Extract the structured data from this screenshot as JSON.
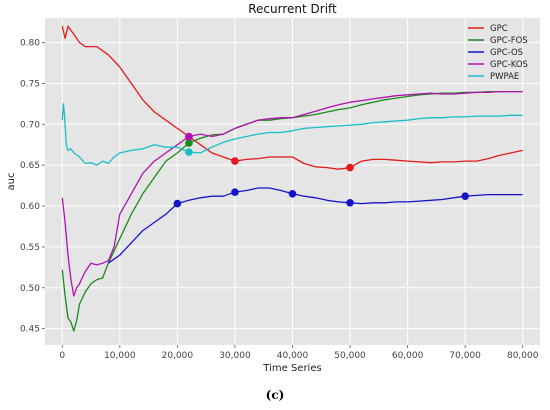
{
  "caption": "(c)",
  "chart_data": {
    "type": "line",
    "title": "Recurrent Drift",
    "xlabel": "Time Series",
    "ylabel": "auc",
    "xlim": [
      -3000,
      83000
    ],
    "ylim": [
      0.43,
      0.83
    ],
    "x_ticks": [
      0,
      10000,
      20000,
      30000,
      40000,
      50000,
      60000,
      70000,
      80000
    ],
    "x_tick_labels": [
      "0",
      "10,000",
      "20,000",
      "30,000",
      "40,000",
      "50,000",
      "60,000",
      "70,000",
      "80,000"
    ],
    "y_ticks": [
      0.45,
      0.5,
      0.55,
      0.6,
      0.65,
      0.7,
      0.75,
      0.8
    ],
    "y_tick_labels": [
      "0.45",
      "0.50",
      "0.55",
      "0.60",
      "0.65",
      "0.70",
      "0.75",
      "0.80"
    ],
    "grid": true,
    "legend": "top-right",
    "series": [
      {
        "name": "GPC",
        "color": "#e41a1c",
        "points": [
          [
            0,
            0.82
          ],
          [
            500,
            0.805
          ],
          [
            1000,
            0.82
          ],
          [
            2000,
            0.81
          ],
          [
            3000,
            0.8
          ],
          [
            4000,
            0.795
          ],
          [
            6000,
            0.795
          ],
          [
            8000,
            0.785
          ],
          [
            10000,
            0.77
          ],
          [
            12000,
            0.75
          ],
          [
            14000,
            0.73
          ],
          [
            16000,
            0.715
          ],
          [
            18000,
            0.705
          ],
          [
            20000,
            0.695
          ],
          [
            22000,
            0.685
          ],
          [
            24000,
            0.675
          ],
          [
            26000,
            0.665
          ],
          [
            28000,
            0.66
          ],
          [
            30000,
            0.655
          ],
          [
            32000,
            0.657
          ],
          [
            34000,
            0.658
          ],
          [
            36000,
            0.66
          ],
          [
            38000,
            0.66
          ],
          [
            40000,
            0.66
          ],
          [
            42000,
            0.652
          ],
          [
            44000,
            0.648
          ],
          [
            46000,
            0.647
          ],
          [
            48000,
            0.645
          ],
          [
            50000,
            0.647
          ],
          [
            52000,
            0.655
          ],
          [
            54000,
            0.657
          ],
          [
            56000,
            0.657
          ],
          [
            58000,
            0.656
          ],
          [
            60000,
            0.655
          ],
          [
            62000,
            0.654
          ],
          [
            64000,
            0.653
          ],
          [
            66000,
            0.654
          ],
          [
            68000,
            0.654
          ],
          [
            70000,
            0.655
          ],
          [
            72000,
            0.655
          ],
          [
            74000,
            0.658
          ],
          [
            76000,
            0.662
          ],
          [
            78000,
            0.665
          ],
          [
            80000,
            0.668
          ]
        ],
        "markers": [
          [
            22000,
            0.684
          ],
          [
            30000,
            0.655
          ],
          [
            50000,
            0.647
          ]
        ]
      },
      {
        "name": "GPC-FOS",
        "color": "#1a8a1a",
        "points": [
          [
            0,
            0.522
          ],
          [
            500,
            0.49
          ],
          [
            1000,
            0.463
          ],
          [
            1500,
            0.458
          ],
          [
            2000,
            0.447
          ],
          [
            2500,
            0.46
          ],
          [
            3000,
            0.48
          ],
          [
            4000,
            0.495
          ],
          [
            5000,
            0.505
          ],
          [
            6000,
            0.51
          ],
          [
            7000,
            0.512
          ],
          [
            8000,
            0.53
          ],
          [
            10000,
            0.56
          ],
          [
            12000,
            0.59
          ],
          [
            14000,
            0.615
          ],
          [
            16000,
            0.635
          ],
          [
            18000,
            0.655
          ],
          [
            20000,
            0.665
          ],
          [
            22000,
            0.677
          ],
          [
            24000,
            0.683
          ],
          [
            26000,
            0.687
          ],
          [
            28000,
            0.688
          ],
          [
            30000,
            0.695
          ],
          [
            32000,
            0.7
          ],
          [
            34000,
            0.705
          ],
          [
            36000,
            0.705
          ],
          [
            38000,
            0.707
          ],
          [
            40000,
            0.708
          ],
          [
            42000,
            0.71
          ],
          [
            44000,
            0.712
          ],
          [
            46000,
            0.715
          ],
          [
            48000,
            0.718
          ],
          [
            50000,
            0.72
          ],
          [
            52000,
            0.724
          ],
          [
            54000,
            0.727
          ],
          [
            56000,
            0.73
          ],
          [
            58000,
            0.732
          ],
          [
            60000,
            0.734
          ],
          [
            62000,
            0.736
          ],
          [
            64000,
            0.737
          ],
          [
            66000,
            0.738
          ],
          [
            68000,
            0.738
          ],
          [
            70000,
            0.739
          ],
          [
            72000,
            0.739
          ],
          [
            74000,
            0.74
          ],
          [
            76000,
            0.74
          ],
          [
            78000,
            0.74
          ],
          [
            80000,
            0.74
          ]
        ],
        "markers": [
          [
            22000,
            0.677
          ]
        ]
      },
      {
        "name": "GPC-OS",
        "color": "#1515c8",
        "points": [
          [
            8000,
            0.53
          ],
          [
            10000,
            0.54
          ],
          [
            12000,
            0.555
          ],
          [
            14000,
            0.57
          ],
          [
            16000,
            0.58
          ],
          [
            18000,
            0.59
          ],
          [
            20000,
            0.603
          ],
          [
            22000,
            0.607
          ],
          [
            24000,
            0.61
          ],
          [
            26000,
            0.612
          ],
          [
            28000,
            0.612
          ],
          [
            30000,
            0.617
          ],
          [
            32000,
            0.619
          ],
          [
            34000,
            0.622
          ],
          [
            36000,
            0.622
          ],
          [
            38000,
            0.619
          ],
          [
            40000,
            0.615
          ],
          [
            42000,
            0.612
          ],
          [
            44000,
            0.61
          ],
          [
            46000,
            0.607
          ],
          [
            48000,
            0.605
          ],
          [
            50000,
            0.604
          ],
          [
            52000,
            0.603
          ],
          [
            54000,
            0.604
          ],
          [
            56000,
            0.604
          ],
          [
            58000,
            0.605
          ],
          [
            60000,
            0.605
          ],
          [
            62000,
            0.606
          ],
          [
            64000,
            0.607
          ],
          [
            66000,
            0.608
          ],
          [
            68000,
            0.61
          ],
          [
            70000,
            0.612
          ],
          [
            72000,
            0.613
          ],
          [
            74000,
            0.614
          ],
          [
            76000,
            0.614
          ],
          [
            78000,
            0.614
          ],
          [
            80000,
            0.614
          ]
        ],
        "markers": [
          [
            20000,
            0.603
          ],
          [
            30000,
            0.617
          ],
          [
            40000,
            0.615
          ],
          [
            50000,
            0.604
          ],
          [
            70000,
            0.612
          ]
        ]
      },
      {
        "name": "GPC-KOS",
        "color": "#b012b0",
        "points": [
          [
            0,
            0.61
          ],
          [
            500,
            0.58
          ],
          [
            1000,
            0.54
          ],
          [
            1500,
            0.51
          ],
          [
            2000,
            0.49
          ],
          [
            2500,
            0.5
          ],
          [
            3000,
            0.505
          ],
          [
            4000,
            0.52
          ],
          [
            5000,
            0.53
          ],
          [
            6000,
            0.528
          ],
          [
            7000,
            0.53
          ],
          [
            8000,
            0.533
          ],
          [
            9000,
            0.55
          ],
          [
            10000,
            0.59
          ],
          [
            12000,
            0.615
          ],
          [
            14000,
            0.64
          ],
          [
            16000,
            0.655
          ],
          [
            18000,
            0.665
          ],
          [
            20000,
            0.675
          ],
          [
            22000,
            0.685
          ],
          [
            24000,
            0.688
          ],
          [
            26000,
            0.685
          ],
          [
            28000,
            0.688
          ],
          [
            30000,
            0.695
          ],
          [
            32000,
            0.7
          ],
          [
            34000,
            0.705
          ],
          [
            36000,
            0.707
          ],
          [
            38000,
            0.708
          ],
          [
            40000,
            0.708
          ],
          [
            42000,
            0.712
          ],
          [
            44000,
            0.716
          ],
          [
            46000,
            0.72
          ],
          [
            48000,
            0.724
          ],
          [
            50000,
            0.727
          ],
          [
            52000,
            0.729
          ],
          [
            54000,
            0.731
          ],
          [
            56000,
            0.733
          ],
          [
            58000,
            0.735
          ],
          [
            60000,
            0.736
          ],
          [
            62000,
            0.737
          ],
          [
            64000,
            0.738
          ],
          [
            66000,
            0.737
          ],
          [
            68000,
            0.737
          ],
          [
            70000,
            0.738
          ],
          [
            72000,
            0.739
          ],
          [
            74000,
            0.739
          ],
          [
            76000,
            0.74
          ],
          [
            78000,
            0.74
          ],
          [
            80000,
            0.74
          ]
        ],
        "markers": [
          [
            22000,
            0.685
          ]
        ]
      },
      {
        "name": "PWPAE",
        "color": "#17bec8",
        "points": [
          [
            0,
            0.705
          ],
          [
            200,
            0.725
          ],
          [
            400,
            0.71
          ],
          [
            700,
            0.675
          ],
          [
            1000,
            0.668
          ],
          [
            1500,
            0.67
          ],
          [
            2000,
            0.665
          ],
          [
            3000,
            0.66
          ],
          [
            4000,
            0.652
          ],
          [
            5000,
            0.653
          ],
          [
            6000,
            0.65
          ],
          [
            7000,
            0.655
          ],
          [
            8000,
            0.652
          ],
          [
            9000,
            0.66
          ],
          [
            10000,
            0.665
          ],
          [
            12000,
            0.668
          ],
          [
            14000,
            0.67
          ],
          [
            16000,
            0.675
          ],
          [
            18000,
            0.672
          ],
          [
            20000,
            0.672
          ],
          [
            22000,
            0.666
          ],
          [
            24000,
            0.665
          ],
          [
            26000,
            0.672
          ],
          [
            28000,
            0.678
          ],
          [
            30000,
            0.682
          ],
          [
            32000,
            0.685
          ],
          [
            34000,
            0.688
          ],
          [
            36000,
            0.69
          ],
          [
            38000,
            0.69
          ],
          [
            40000,
            0.692
          ],
          [
            42000,
            0.695
          ],
          [
            44000,
            0.696
          ],
          [
            46000,
            0.697
          ],
          [
            48000,
            0.698
          ],
          [
            50000,
            0.699
          ],
          [
            52000,
            0.7
          ],
          [
            54000,
            0.702
          ],
          [
            56000,
            0.703
          ],
          [
            58000,
            0.704
          ],
          [
            60000,
            0.705
          ],
          [
            62000,
            0.707
          ],
          [
            64000,
            0.708
          ],
          [
            66000,
            0.708
          ],
          [
            68000,
            0.709
          ],
          [
            70000,
            0.709
          ],
          [
            72000,
            0.71
          ],
          [
            74000,
            0.71
          ],
          [
            76000,
            0.71
          ],
          [
            78000,
            0.711
          ],
          [
            80000,
            0.711
          ]
        ],
        "markers": [
          [
            22000,
            0.666
          ]
        ]
      }
    ]
  }
}
